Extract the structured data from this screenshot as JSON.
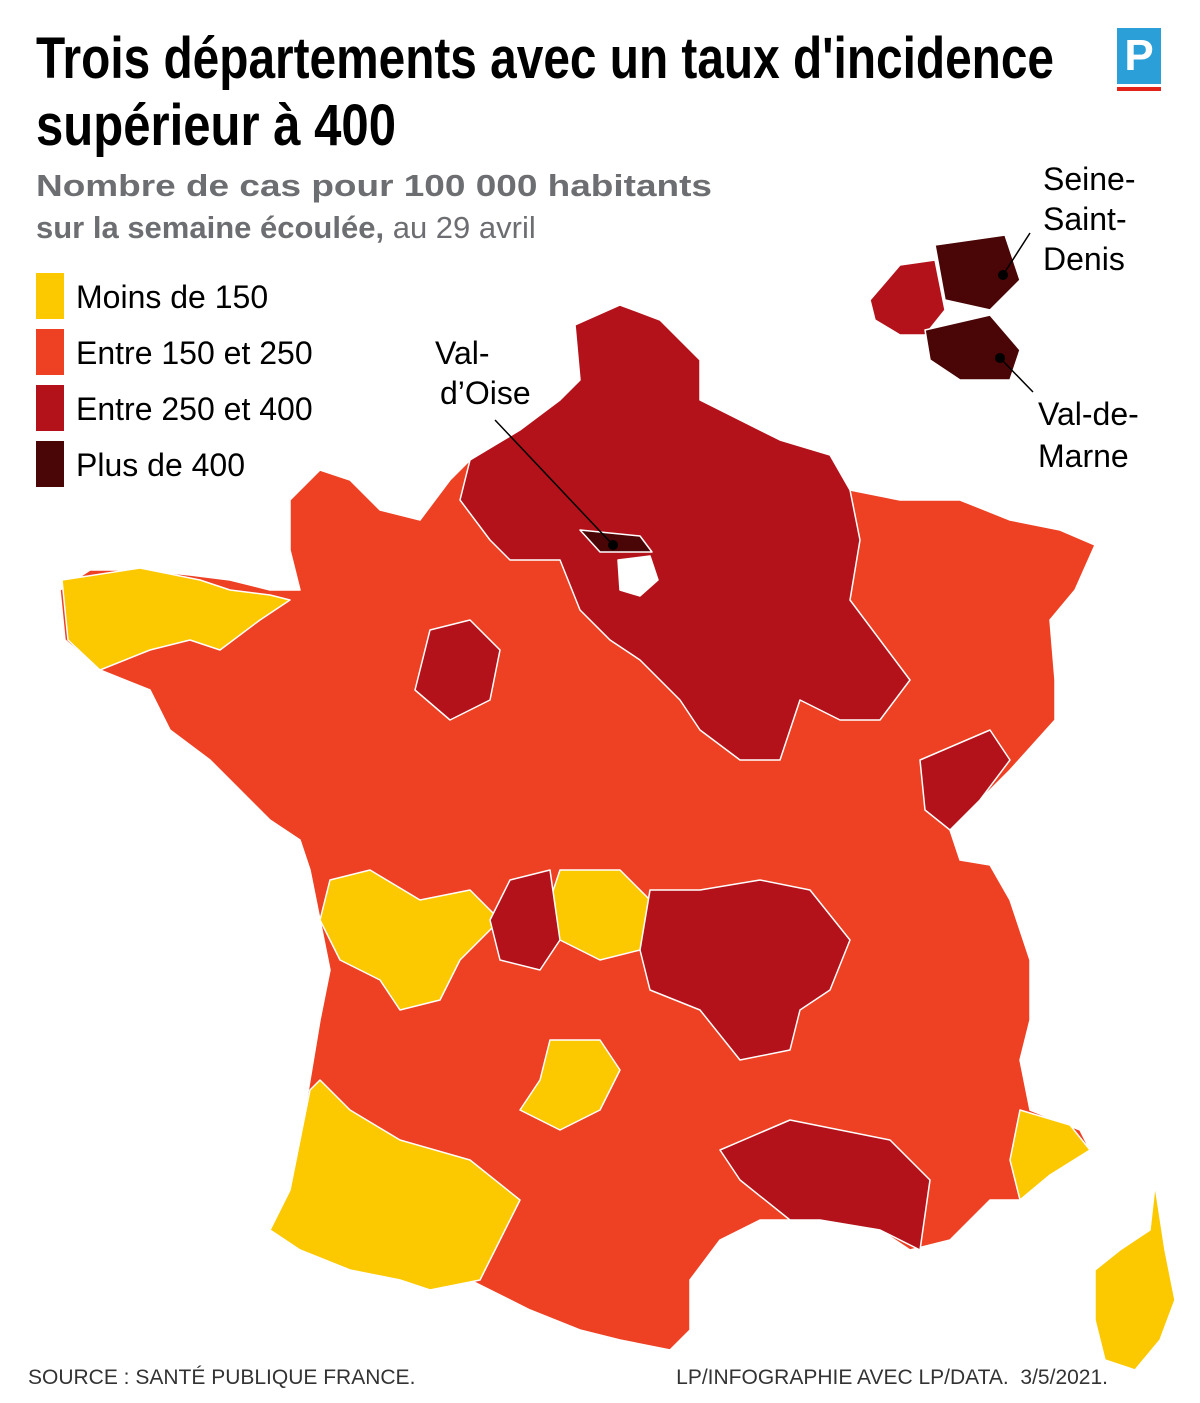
{
  "header": {
    "title_lines": [
      "Trois départements avec un taux d'incidence",
      "supérieur à 400"
    ],
    "subtitle_lines": [
      "Nombre de cas pour 100 000 habitants",
      "sur la semaine écoulée,"
    ],
    "date": "au 29 avril"
  },
  "logo": "P",
  "legend": [
    {
      "label": "Moins de 150",
      "color": "#fcc800"
    },
    {
      "label": "Entre 150 et 250",
      "color": "#ee4023"
    },
    {
      "label": "Entre 250 et 400",
      "color": "#b3121b"
    },
    {
      "label": "Plus de 400",
      "color": "#4a0606"
    }
  ],
  "callouts": {
    "val_d_oise": [
      "Val-",
      "d’Oise"
    ],
    "seine_saint_denis": [
      "Seine-",
      "Saint-",
      "Denis"
    ],
    "val_de_marne": [
      "Val-de-",
      "Marne"
    ]
  },
  "footer": {
    "source": "SOURCE : SANTÉ PUBLIQUE FRANCE.",
    "credit": "LP/INFOGRAPHIE AVEC LP/DATA.  3/5/2021."
  }
}
